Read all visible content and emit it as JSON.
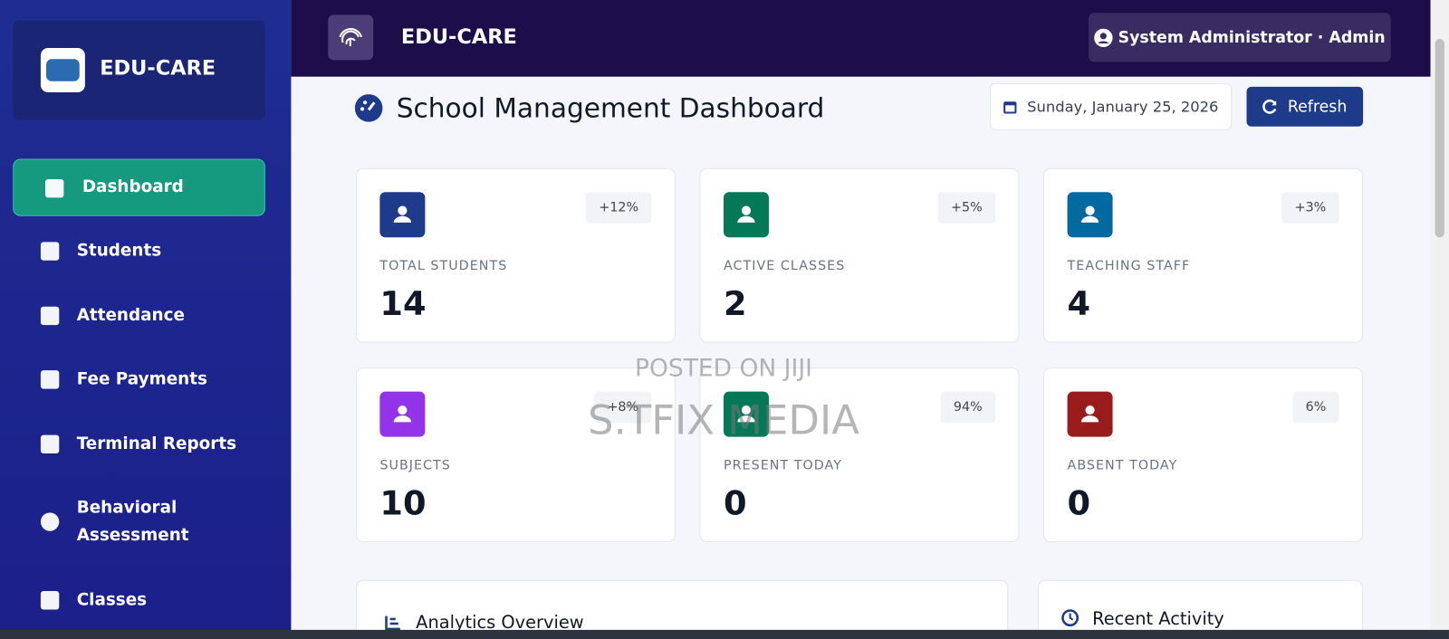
{
  "sidebar": {
    "brand": "EDU-CARE",
    "nav": [
      "Dashboard",
      "Students",
      "Attendance",
      "Fee Payments",
      "Terminal Reports",
      "Behavioral Assessment",
      "Classes"
    ]
  },
  "topbar": {
    "brand": "EDU-CARE",
    "user": "System Administrator · Admin"
  },
  "header": {
    "title": "School Management Dashboard",
    "date": "Sunday, January 25, 2026",
    "refresh": "Refresh"
  },
  "cards": [
    {
      "label": "TOTAL STUDENTS",
      "value": 14,
      "change": "+12%"
    },
    {
      "label": "ACTIVE CLASSES",
      "value": 2,
      "change": "+5%"
    },
    {
      "label": "TEACHING STAFF",
      "value": 4,
      "change": "+3%"
    },
    {
      "label": "SUBJECTS",
      "value": 10,
      "change": "+8%"
    },
    {
      "label": "PRESENT TODAY",
      "value": 0,
      "change": "94%"
    },
    {
      "label": "ABSENT TODAY",
      "value": 0,
      "change": "6%"
    }
  ],
  "panels": [
    "Analytics Overview",
    "Recent Activity"
  ],
  "watermark": [
    "POSTED ON JIJI",
    "S.TFIX MEDIA"
  ]
}
